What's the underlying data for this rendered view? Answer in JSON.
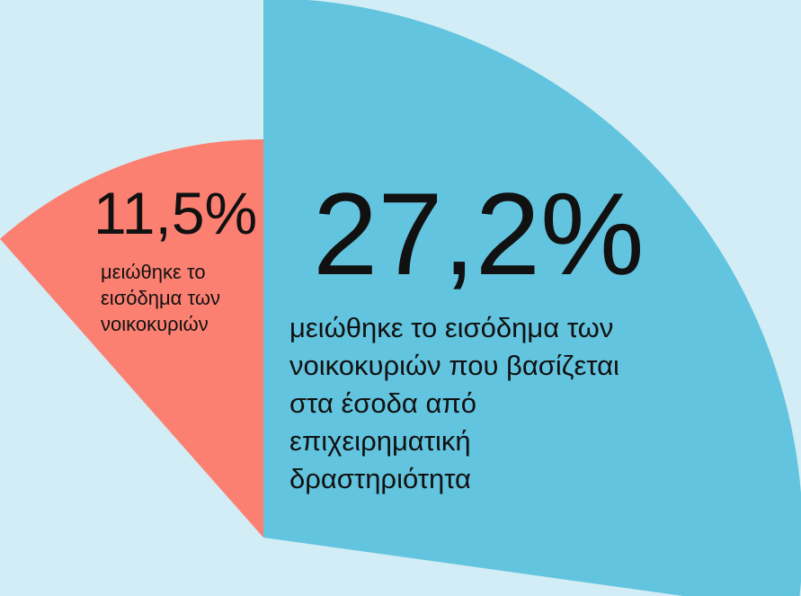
{
  "chart_data": {
    "type": "pie",
    "categories": [
      "μειώθηκε το εισόδημα των νοικοκυριών",
      "μειώθηκε το εισόδημα των νοικοκυριών που βασίζεται στα έσοδα από επιχειρηματική δραστηριότητα"
    ],
    "values": [
      11.5,
      27.2
    ],
    "value_labels": [
      "11,5%",
      "27,2%"
    ],
    "colors": [
      "#fc8072",
      "#62c4de"
    ]
  }
}
